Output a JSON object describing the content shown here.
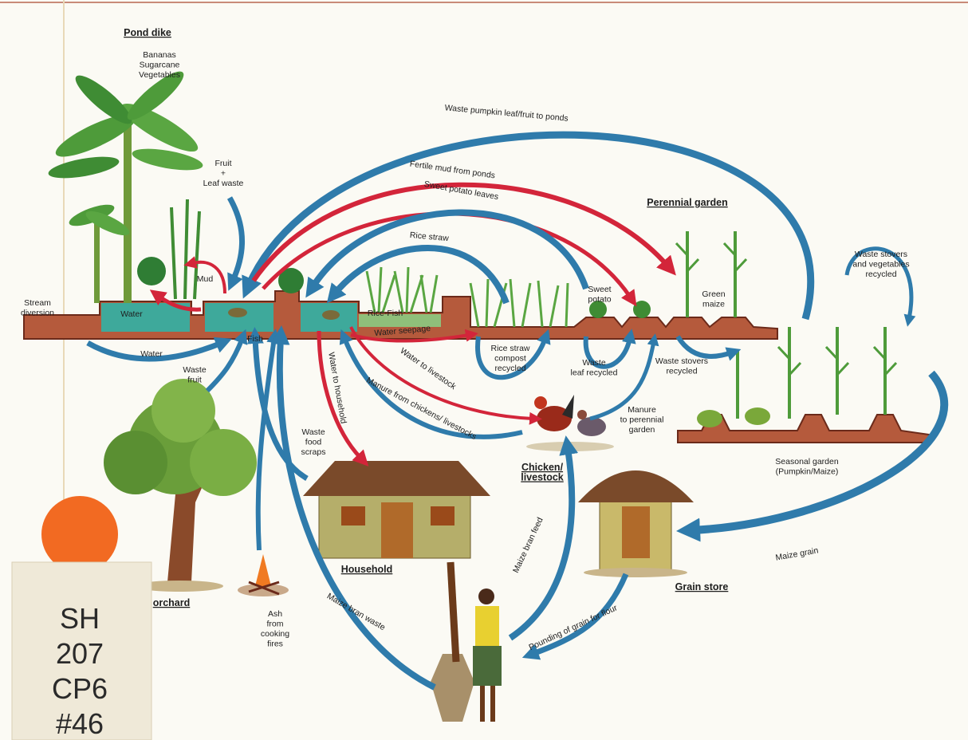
{
  "labels": [
    {
      "lines": [
        "Pond dike"
      ]
    },
    {
      "lines": [
        "Bananas",
        "Sugarcane",
        "Vegetables"
      ]
    },
    {
      "lines": [
        "Fruit",
        "+",
        "Leaf waste"
      ]
    },
    {
      "lines": [
        "Mud"
      ]
    },
    {
      "lines": [
        "Stream",
        "diversion"
      ]
    },
    {
      "lines": [
        "Water"
      ]
    },
    {
      "lines": [
        "Water"
      ]
    },
    {
      "lines": [
        "Fish"
      ]
    },
    {
      "lines": [
        "Waste",
        "fruit"
      ]
    },
    {
      "lines": [
        "Waste pumpkin leaf/fruit to ponds"
      ]
    },
    {
      "lines": [
        "Fertile mud from ponds"
      ]
    },
    {
      "lines": [
        "Sweet potato leaves"
      ]
    },
    {
      "lines": [
        "Rice straw"
      ]
    },
    {
      "lines": [
        "Rice-Fish"
      ]
    },
    {
      "lines": [
        "Water seepage"
      ]
    },
    {
      "lines": [
        "Water to livestock"
      ]
    },
    {
      "lines": [
        "Manure from chickens/ livestocks"
      ]
    },
    {
      "lines": [
        "Water to household"
      ]
    },
    {
      "lines": [
        "Waste",
        "food",
        "scraps"
      ]
    },
    {
      "lines": [
        "Sweet",
        "potato"
      ]
    },
    {
      "lines": [
        "Perennial garden"
      ]
    },
    {
      "lines": [
        "Green",
        "maize"
      ]
    },
    {
      "lines": [
        "Waste stovers",
        "and vegetables",
        "recycled"
      ]
    },
    {
      "lines": [
        "Rice straw",
        "compost",
        "recycled"
      ]
    },
    {
      "lines": [
        "Waste",
        "leaf recycled"
      ]
    },
    {
      "lines": [
        "Waste stovers",
        "recycled"
      ]
    },
    {
      "lines": [
        "Manure",
        "to perennial",
        "garden"
      ]
    },
    {
      "lines": [
        "Seasonal garden",
        "(Pumpkin/Maize)"
      ]
    },
    {
      "lines": [
        "Chicken/",
        "livestock"
      ]
    },
    {
      "lines": [
        "Household"
      ]
    },
    {
      "lines": [
        "Maize grain"
      ]
    },
    {
      "lines": [
        "Grain store"
      ]
    },
    {
      "lines": [
        "Maize bran feed"
      ]
    },
    {
      "lines": [
        "Pounding of grain for flour"
      ]
    },
    {
      "lines": [
        "Maize bran waste"
      ]
    },
    {
      "lines": [
        "orchard"
      ]
    },
    {
      "lines": [
        "Ash",
        "from",
        "cooking",
        "fires"
      ]
    }
  ],
  "sticker": {
    "lines": [
      "SH",
      "207",
      "CP6",
      "#46"
    ]
  }
}
